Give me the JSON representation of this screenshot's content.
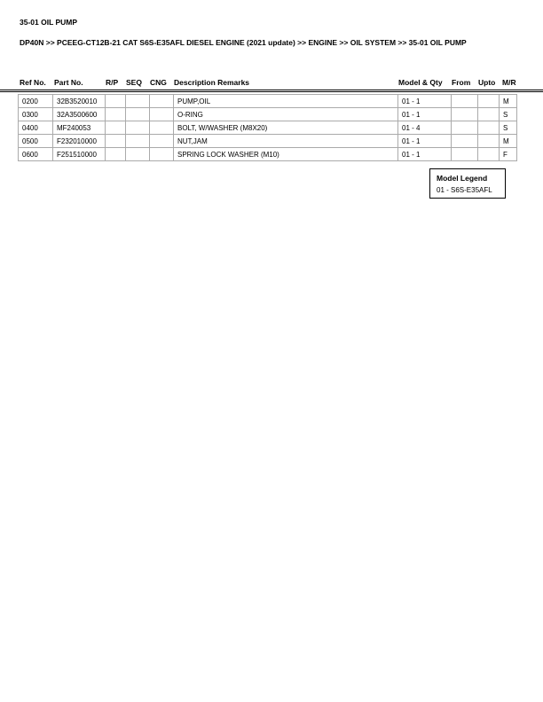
{
  "title": "35-01 OIL PUMP",
  "breadcrumb": "DP40N >> PCEEG-CT12B-21 CAT S6S-E35AFL DIESEL ENGINE (2021 update) >> ENGINE >> OIL SYSTEM >> 35-01 OIL PUMP",
  "columns": [
    "Ref No.",
    "Part No.",
    "R/P",
    "SEQ",
    "CNG",
    "Description Remarks",
    "Model & Qty",
    "From",
    "Upto",
    "M/R"
  ],
  "rows": [
    [
      "0200",
      "32B3520010",
      "",
      "",
      "",
      "PUMP,OIL",
      "01 - 1",
      "",
      "",
      "M"
    ],
    [
      "0300",
      "32A3500600",
      "",
      "",
      "",
      "O-RING",
      "01 - 1",
      "",
      "",
      "S"
    ],
    [
      "0400",
      "MF240053",
      "",
      "",
      "",
      "BOLT, W/WASHER (M8X20)",
      "01 - 4",
      "",
      "",
      "S"
    ],
    [
      "0500",
      "F232010000",
      "",
      "",
      "",
      "NUT,JAM",
      "01 - 1",
      "",
      "",
      "M"
    ],
    [
      "0600",
      "F251510000",
      "",
      "",
      "",
      "SPRING LOCK WASHER (M10)",
      "01 - 1",
      "",
      "",
      "F"
    ]
  ],
  "legend": {
    "title": "Model Legend",
    "entry": "01 - S6S-E35AFL"
  }
}
